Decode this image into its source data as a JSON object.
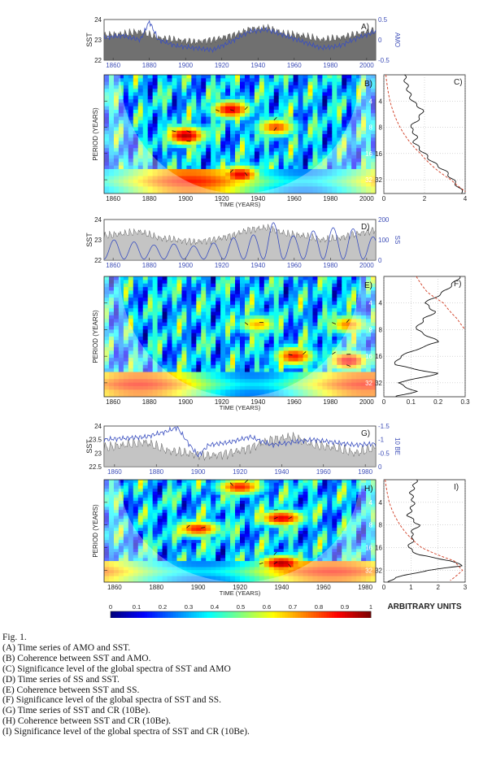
{
  "colors": {
    "sst_fill": "#707070",
    "sst_fill_light": "#c4c4c4",
    "blue_line": "#3a4fc0",
    "axis_text_blue": "#3f4fb8",
    "significance": "#d03a20",
    "cone": "#ffffff"
  },
  "chart_data": [
    {
      "id": "A",
      "type": "area",
      "panel_label": "A)",
      "ylabel": "SST",
      "ylabel_right": "AMO",
      "xlim": [
        1855,
        2005
      ],
      "ylim": [
        22,
        24
      ],
      "ylim_right": [
        -0.5,
        0.5
      ],
      "yticks": [
        "24",
        "23",
        "22"
      ],
      "yticks_right": [
        "0.5",
        "0",
        "-0.5"
      ],
      "xticks": [
        "1860",
        "1880",
        "1900",
        "1920",
        "1940",
        "1960",
        "1980",
        "2000"
      ],
      "series": [
        {
          "name": "SST",
          "x": [
            1855,
            1865,
            1875,
            1885,
            1895,
            1905,
            1915,
            1925,
            1935,
            1945,
            1955,
            1965,
            1975,
            1985,
            1995,
            2005
          ],
          "values": [
            23.2,
            23.3,
            23.4,
            23.1,
            23.0,
            22.9,
            23.0,
            23.2,
            23.5,
            23.6,
            23.3,
            23.2,
            23.0,
            23.1,
            23.3,
            23.5
          ]
        },
        {
          "name": "AMO",
          "x": [
            1855,
            1865,
            1875,
            1880,
            1885,
            1895,
            1905,
            1915,
            1925,
            1935,
            1945,
            1955,
            1965,
            1975,
            1985,
            1995,
            2005
          ],
          "values": [
            0.05,
            0.1,
            0.0,
            0.45,
            0.0,
            -0.15,
            -0.2,
            -0.25,
            -0.05,
            0.2,
            0.25,
            0.1,
            -0.05,
            -0.2,
            -0.15,
            0.05,
            0.2
          ]
        }
      ]
    },
    {
      "id": "B",
      "type": "heatmap",
      "panel_label": "B)",
      "ylabel": "PERIOD (YEARS)",
      "xlabel": "TIME (YEARS)",
      "xlim": [
        1855,
        2005
      ],
      "xticks": [
        "1860",
        "1880",
        "1900",
        "1920",
        "1940",
        "1960",
        "1980",
        "2000"
      ],
      "yticks": [
        "4",
        "8",
        "16",
        "32"
      ],
      "hot_regions": [
        {
          "t": 1900,
          "p": 10,
          "v": 0.95
        },
        {
          "t": 1925,
          "p": 5,
          "v": 0.9
        },
        {
          "t": 1950,
          "p": 8,
          "v": 0.8
        },
        {
          "t": 1930,
          "p": 28,
          "v": 0.9
        }
      ]
    },
    {
      "id": "C",
      "type": "line",
      "panel_label": "C)",
      "xlim": [
        0,
        4
      ],
      "xticks": [
        "0",
        "2",
        "4"
      ],
      "yticks": [
        "4",
        "8",
        "16",
        "32"
      ],
      "series": [
        {
          "name": "spectrum",
          "period": [
            2,
            3,
            4,
            5,
            6,
            8,
            10,
            12,
            16,
            20,
            25,
            32,
            45
          ],
          "values": [
            1.0,
            1.2,
            1.4,
            1.9,
            1.8,
            1.3,
            1.6,
            1.5,
            2.0,
            2.4,
            3.0,
            3.4,
            3.9
          ]
        },
        {
          "name": "significance",
          "period": [
            2,
            4,
            8,
            16,
            32,
            45
          ],
          "values": [
            0.1,
            0.3,
            0.8,
            1.8,
            3.3,
            4.1
          ]
        }
      ]
    },
    {
      "id": "D",
      "type": "area",
      "panel_label": "D)",
      "ylabel": "SST",
      "ylabel_right": "SS",
      "xlim": [
        1855,
        2005
      ],
      "ylim": [
        22,
        24
      ],
      "ylim_right": [
        0,
        200
      ],
      "yticks": [
        "24",
        "23",
        "22"
      ],
      "yticks_right": [
        "200",
        "100",
        "0"
      ],
      "xticks": [
        "1860",
        "1880",
        "1900",
        "1920",
        "1940",
        "1960",
        "1980",
        "2000"
      ],
      "series": [
        {
          "name": "SST",
          "x": [
            1855,
            1865,
            1875,
            1885,
            1895,
            1905,
            1915,
            1925,
            1935,
            1945,
            1955,
            1965,
            1975,
            1985,
            1995,
            2005
          ],
          "values": [
            23.2,
            23.3,
            23.4,
            23.1,
            23.0,
            22.9,
            23.0,
            23.2,
            23.5,
            23.6,
            23.3,
            23.2,
            23.0,
            23.1,
            23.3,
            23.5
          ]
        },
        {
          "name": "SS",
          "cycle_years": 11,
          "max": [
            95,
            85,
            70,
            75,
            65,
            80,
            105,
            120,
            180,
            115,
            140,
            155,
            150,
            110
          ],
          "start": 1855
        }
      ]
    },
    {
      "id": "E",
      "type": "heatmap",
      "panel_label": "E)",
      "ylabel": "PERIOD (YEARS)",
      "xlabel": "TIME (YEARS)",
      "xlim": [
        1855,
        2005
      ],
      "xticks": [
        "1860",
        "1880",
        "1900",
        "1920",
        "1940",
        "1960",
        "1980",
        "2000"
      ],
      "yticks": [
        "4",
        "8",
        "16",
        "32"
      ],
      "hot_regions": [
        {
          "t": 1960,
          "p": 16,
          "v": 0.85
        },
        {
          "t": 1940,
          "p": 7,
          "v": 0.7
        },
        {
          "t": 1990,
          "p": 7,
          "v": 0.75
        },
        {
          "t": 1990,
          "p": 18,
          "v": 0.9
        }
      ]
    },
    {
      "id": "F",
      "type": "line",
      "panel_label": "F)",
      "xlim": [
        0,
        0.3
      ],
      "xticks": [
        "0",
        "0.1",
        "0.2",
        "0.3"
      ],
      "yticks": [
        "4",
        "8",
        "16",
        "32"
      ],
      "series": [
        {
          "name": "spectrum",
          "period": [
            2,
            3,
            4,
            5,
            6,
            7,
            8,
            10,
            11,
            13,
            16,
            20,
            25,
            32,
            40,
            45
          ],
          "values": [
            0.28,
            0.22,
            0.15,
            0.19,
            0.15,
            0.13,
            0.12,
            0.18,
            0.2,
            0.13,
            0.06,
            0.04,
            0.2,
            0.05,
            0.12,
            0.05
          ]
        },
        {
          "name": "significance",
          "period": [
            2,
            3,
            4,
            6,
            8
          ],
          "values": [
            0.12,
            0.16,
            0.22,
            0.27,
            0.3
          ]
        }
      ]
    },
    {
      "id": "G",
      "type": "area",
      "panel_label": "G)",
      "ylabel": "SST",
      "ylabel_right": "10 BE",
      "xlim": [
        1855,
        1985
      ],
      "ylim": [
        22.5,
        24
      ],
      "ylim_right": [
        0,
        -1.5
      ],
      "yticks": [
        "24",
        "23.5",
        "23",
        "22.5"
      ],
      "yticks_right": [
        "-1.5",
        "-1",
        "-0.5",
        "0"
      ],
      "xticks": [
        "1860",
        "1880",
        "1900",
        "1920",
        "1940",
        "1960",
        "1980"
      ],
      "series": [
        {
          "name": "SST",
          "x": [
            1855,
            1865,
            1875,
            1885,
            1895,
            1905,
            1915,
            1925,
            1935,
            1945,
            1955,
            1965,
            1975,
            1985
          ],
          "values": [
            23.2,
            23.3,
            23.4,
            23.1,
            23.0,
            22.9,
            23.0,
            23.2,
            23.5,
            23.6,
            23.3,
            23.2,
            23.0,
            23.2
          ]
        },
        {
          "name": "10 BE",
          "x": [
            1855,
            1865,
            1875,
            1885,
            1890,
            1895,
            1900,
            1905,
            1915,
            1925,
            1935,
            1945,
            1955,
            1965,
            1975,
            1985
          ],
          "values": [
            -1.0,
            -1.05,
            -1.1,
            -1.3,
            -1.45,
            -0.9,
            -0.4,
            -0.8,
            -0.9,
            -1.1,
            -0.8,
            -0.9,
            -1.0,
            -0.9,
            -0.8,
            -0.85
          ]
        }
      ]
    },
    {
      "id": "H",
      "type": "heatmap",
      "panel_label": "H)",
      "ylabel": "PERIOD (YEARS)",
      "xlabel": "TIME (YEARS)",
      "xlim": [
        1855,
        1985
      ],
      "xticks": [
        "1860",
        "1880",
        "1900",
        "1920",
        "1940",
        "1960",
        "1980"
      ],
      "yticks": [
        "4",
        "8",
        "16",
        "32"
      ],
      "colorbar_ticks": [
        "0",
        "0.1",
        "0.2",
        "0.3",
        "0.4",
        "0.5",
        "0.6",
        "0.7",
        "0.8",
        "0.9",
        "1"
      ],
      "hot_regions": [
        {
          "t": 1940,
          "p": 26,
          "v": 0.95
        },
        {
          "t": 1940,
          "p": 6.5,
          "v": 0.9
        },
        {
          "t": 1900,
          "p": 9,
          "v": 0.85
        },
        {
          "t": 1920,
          "p": 2.5,
          "v": 0.85
        }
      ]
    },
    {
      "id": "I",
      "type": "line",
      "panel_label": "I)",
      "xlabel": "ARBITRARY UNITS",
      "xlim": [
        0,
        3
      ],
      "xticks": [
        "0",
        "1",
        "2",
        "3"
      ],
      "yticks": [
        "4",
        "8",
        "16",
        "32"
      ],
      "series": [
        {
          "name": "spectrum",
          "period": [
            2,
            3,
            4,
            5,
            6,
            8,
            10,
            12,
            16,
            20,
            24,
            28,
            32,
            40,
            45
          ],
          "values": [
            1.2,
            1.0,
            1.1,
            1.0,
            0.9,
            1.3,
            1.0,
            1.1,
            0.9,
            1.3,
            2.5,
            2.9,
            1.6,
            0.4,
            0.2
          ]
        },
        {
          "name": "significance",
          "period": [
            2,
            4,
            8,
            16,
            24,
            32,
            45
          ],
          "values": [
            0.05,
            0.2,
            0.6,
            1.4,
            2.6,
            2.9,
            2.4
          ]
        }
      ]
    }
  ],
  "caption": [
    "Fig. 1.",
    "(A) Time series of AMO and SST.",
    "(B) Coherence between SST and AMO.",
    "(C) Significance level of the global spectra of SST and AMO",
    "(D) Time series of SS and SST.",
    "(E) Coherence between SST and SS.",
    "(F) Significance level of the global spectra of SST and SS.",
    "(G) Time series of SST and CR (10Be).",
    "(H) Coherence between SST and CR (10Be).",
    "(I) Significance level of the global spectra of SST and CR (10Be)."
  ]
}
